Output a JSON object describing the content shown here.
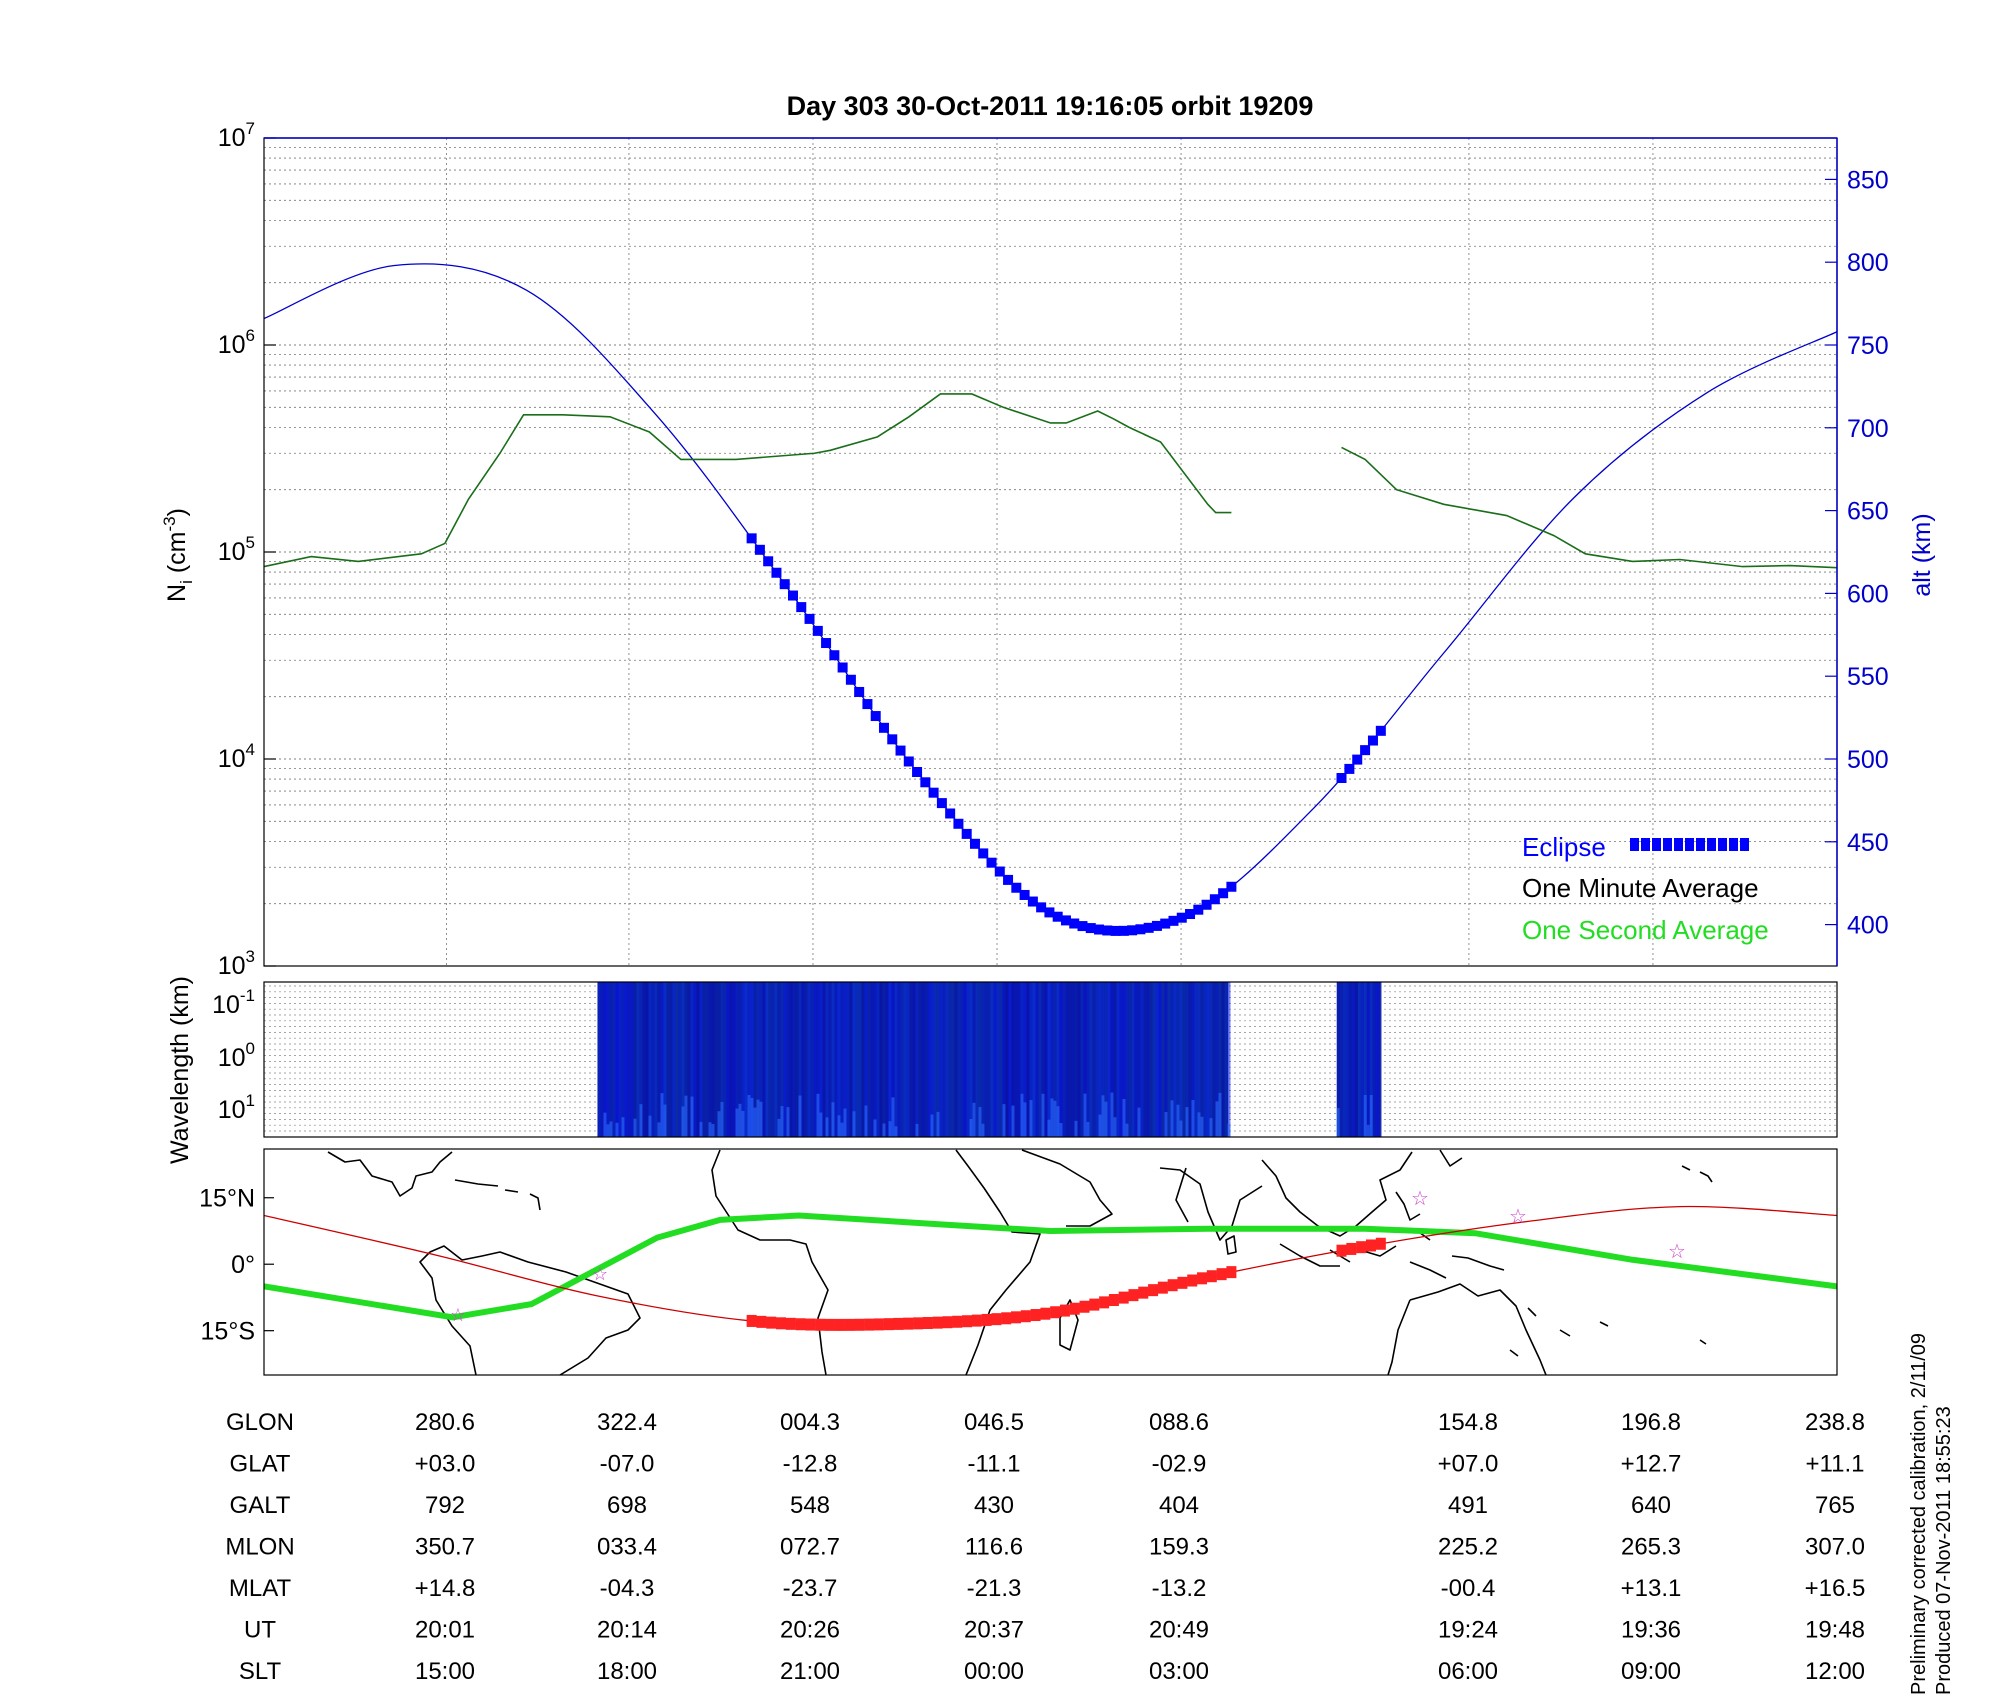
{
  "title": "Day 303  30-Oct-2011 19:16:05   orbit 19209",
  "colors": {
    "altitude": "#0000cc",
    "one_minute": "#1a6e1a",
    "one_second": "#22dd22",
    "eclipse": "#0000ff",
    "track": "#cc0000",
    "eclipse_track": "#ff2222",
    "dip_equator": "#22dd22",
    "spectrogram": "#0a1aa8"
  },
  "chart_data": [
    {
      "type": "line",
      "panel": "density_altitude",
      "ylabel": "N",
      "ylabel_sub": "i",
      "ylabel_unit": "(cm",
      "ylabel_exp": "-3",
      "ylabel_close": ")",
      "yscale": "log",
      "ylim": [
        1000,
        10000000
      ],
      "y_ticks": [
        {
          "base": "10",
          "exp": "3"
        },
        {
          "base": "10",
          "exp": "4"
        },
        {
          "base": "10",
          "exp": "5"
        },
        {
          "base": "10",
          "exp": "6"
        },
        {
          "base": "10",
          "exp": "7"
        }
      ],
      "y2label": "alt (km)",
      "y2lim": [
        375,
        875
      ],
      "y2_ticks": [
        "400",
        "450",
        "500",
        "550",
        "600",
        "650",
        "700",
        "750",
        "800",
        "850"
      ],
      "grid": true,
      "x_unit": "orbit fraction",
      "legend": {
        "placement": "bottom-right",
        "entries": [
          {
            "label": "Eclipse",
            "color": "#0000ff"
          },
          {
            "label": "One Minute Average",
            "color": "#000000"
          },
          {
            "label": "One Second Average",
            "color": "#22dd22"
          }
        ]
      },
      "series": [
        {
          "name": "One Minute Average",
          "y_axis": "left",
          "segments": [
            {
              "x": [
                0.0,
                0.03,
                0.06,
                0.1,
                0.115,
                0.13,
                0.15,
                0.165,
                0.19,
                0.22,
                0.245,
                0.265,
                0.3,
                0.35,
                0.36,
                0.39,
                0.41,
                0.43,
                0.45,
                0.47,
                0.5,
                0.51,
                0.53,
                0.54,
                0.55,
                0.57,
                0.6,
                0.605,
                0.615
              ],
              "y": [
                85000,
                95000,
                90000,
                98000,
                110000,
                180000,
                300000,
                460000,
                460000,
                450000,
                380000,
                280000,
                280000,
                300000,
                310000,
                360000,
                450000,
                580000,
                580000,
                500000,
                420000,
                420000,
                480000,
                440000,
                400000,
                340000,
                170000,
                155000,
                155000
              ]
            },
            {
              "x": [
                0.685,
                0.7,
                0.72,
                0.75,
                0.79,
                0.82,
                0.84,
                0.87,
                0.9,
                0.94,
                0.97,
                1.0
              ],
              "y": [
                320000,
                280000,
                200000,
                170000,
                150000,
                120000,
                98000,
                90000,
                92000,
                85000,
                86000,
                84000
              ]
            }
          ]
        },
        {
          "name": "alt (km)",
          "y_axis": "right",
          "x": [
            0.0,
            0.083,
            0.167,
            0.25,
            0.333,
            0.417,
            0.5,
            0.583,
            0.667,
            0.75,
            0.833,
            0.917,
            1.0
          ],
          "y": [
            766,
            798,
            783,
            707,
            603,
            490,
            407,
            404,
            470,
            564,
            658,
            721,
            758
          ]
        }
      ],
      "eclipse_segments": [
        [
          0.31,
          0.615
        ],
        [
          0.685,
          0.71
        ]
      ]
    },
    {
      "type": "heatmap",
      "panel": "spectrogram",
      "ylabel": "Wavelength (km)",
      "y_ticks": [
        {
          "base": "10",
          "exp": "-1"
        },
        {
          "base": "10",
          "exp": "0"
        },
        {
          "base": "10",
          "exp": "1"
        }
      ],
      "data_blocks": [
        [
          0.212,
          0.613
        ],
        [
          0.682,
          0.71
        ]
      ]
    },
    {
      "type": "line",
      "panel": "ground_track_map",
      "y_ticks": [
        "15°N",
        "0°",
        "15°S"
      ],
      "ylim": [
        -25,
        26
      ],
      "series": [
        {
          "name": "satellite track",
          "x": [
            0.0,
            0.11,
            0.21,
            0.31,
            0.4,
            0.5,
            0.6,
            0.7,
            0.8,
            0.9,
            1.0
          ],
          "y": [
            11,
            2,
            -7,
            -12.8,
            -13.5,
            -11,
            -2.9,
            4,
            9.5,
            13,
            11
          ]
        },
        {
          "name": "dip equator",
          "x": [
            0.0,
            0.12,
            0.17,
            0.25,
            0.29,
            0.34,
            0.43,
            0.5,
            0.6,
            0.7,
            0.77,
            0.87,
            1.0
          ],
          "y": [
            -5,
            -12,
            -9,
            6,
            10,
            11,
            9,
            7.5,
            8,
            8,
            7,
            1,
            -5
          ]
        }
      ],
      "eclipse_segment": [
        0.31,
        0.71
      ]
    }
  ],
  "table": {
    "row_labels": [
      "GLON",
      "GLAT",
      "GALT",
      "MLON",
      "MLAT",
      "UT",
      "SLT"
    ],
    "columns": [
      [
        "280.6",
        "+03.0",
        "792",
        "350.7",
        "+14.8",
        "20:01",
        "15:00"
      ],
      [
        "322.4",
        "-07.0",
        "698",
        "033.4",
        "-04.3",
        "20:14",
        "18:00"
      ],
      [
        "004.3",
        "-12.8",
        "548",
        "072.7",
        "-23.7",
        "20:26",
        "21:00"
      ],
      [
        "046.5",
        "-11.1",
        "430",
        "116.6",
        "-21.3",
        "20:37",
        "00:00"
      ],
      [
        "088.6",
        "-02.9",
        "404",
        "159.3",
        "-13.2",
        "20:49",
        "03:00"
      ],
      [
        "154.8",
        "+07.0",
        "491",
        "225.2",
        "-00.4",
        "19:24",
        "06:00"
      ],
      [
        "196.8",
        "+12.7",
        "640",
        "265.3",
        "+13.1",
        "19:36",
        "09:00"
      ],
      [
        "238.8",
        "+11.1",
        "765",
        "307.0",
        "+16.5",
        "19:48",
        "12:00"
      ]
    ]
  },
  "footer": {
    "line1": "Preliminary corrected calibration, 2/11/09",
    "line2": "Produced 07-Nov-2011 18:55:23"
  }
}
